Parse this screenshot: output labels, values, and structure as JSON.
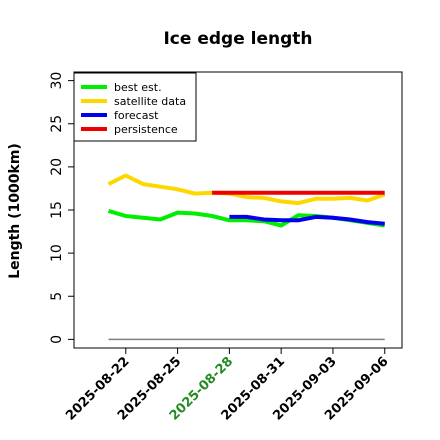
{
  "chart_data": {
    "type": "line",
    "title": "Ice edge length",
    "xlabel": "",
    "ylabel": "Length (1000km)",
    "ylim": [
      -1,
      31
    ],
    "yticks": [
      0,
      5,
      10,
      15,
      20,
      25,
      30
    ],
    "xlim": [
      "2025-08-19",
      "2025-09-07"
    ],
    "xticks": [
      "2025-08-22",
      "2025-08-25",
      "2025-08-28",
      "2025-08-31",
      "2025-09-03",
      "2025-09-06"
    ],
    "highlight_tick": "2025-08-28",
    "highlight_color": "#228b22",
    "grid": false,
    "legend_position": "top-left",
    "baseline": {
      "y": 0,
      "x": [
        "2025-08-21",
        "2025-09-06"
      ],
      "color": "#808080"
    },
    "series": [
      {
        "name": "best est.",
        "color": "#00ee00",
        "x": [
          "2025-08-21",
          "2025-08-22",
          "2025-08-23",
          "2025-08-24",
          "2025-08-25",
          "2025-08-26",
          "2025-08-27",
          "2025-08-28",
          "2025-08-29",
          "2025-08-30",
          "2025-08-31",
          "2025-09-01",
          "2025-09-02",
          "2025-09-03",
          "2025-09-04",
          "2025-09-05",
          "2025-09-06"
        ],
        "y": [
          14.9,
          14.3,
          14.1,
          13.9,
          14.7,
          14.6,
          14.3,
          13.8,
          13.8,
          13.7,
          13.2,
          14.4,
          14.3,
          14.1,
          13.8,
          13.5,
          13.2
        ]
      },
      {
        "name": "satellite data",
        "color": "#ffd700",
        "x": [
          "2025-08-21",
          "2025-08-22",
          "2025-08-23",
          "2025-08-24",
          "2025-08-25",
          "2025-08-26",
          "2025-08-27",
          "2025-08-28",
          "2025-08-29",
          "2025-08-30",
          "2025-08-31",
          "2025-09-01",
          "2025-09-02",
          "2025-09-03",
          "2025-09-04",
          "2025-09-05",
          "2025-09-06"
        ],
        "y": [
          18.0,
          19.0,
          18.0,
          17.7,
          17.4,
          16.9,
          17.0,
          16.9,
          16.5,
          16.4,
          16.0,
          15.8,
          16.3,
          16.3,
          16.4,
          16.1,
          16.8
        ]
      },
      {
        "name": "forecast",
        "color": "#0000ee",
        "x": [
          "2025-08-28",
          "2025-08-29",
          "2025-08-30",
          "2025-08-31",
          "2025-09-01",
          "2025-09-02",
          "2025-09-03",
          "2025-09-04",
          "2025-09-05",
          "2025-09-06"
        ],
        "y": [
          14.2,
          14.2,
          13.9,
          13.8,
          13.8,
          14.2,
          14.1,
          13.9,
          13.6,
          13.4
        ]
      },
      {
        "name": "persistence",
        "color": "#ee0000",
        "x": [
          "2025-08-27",
          "2025-09-06"
        ],
        "y": [
          17.0,
          17.0
        ]
      }
    ]
  }
}
